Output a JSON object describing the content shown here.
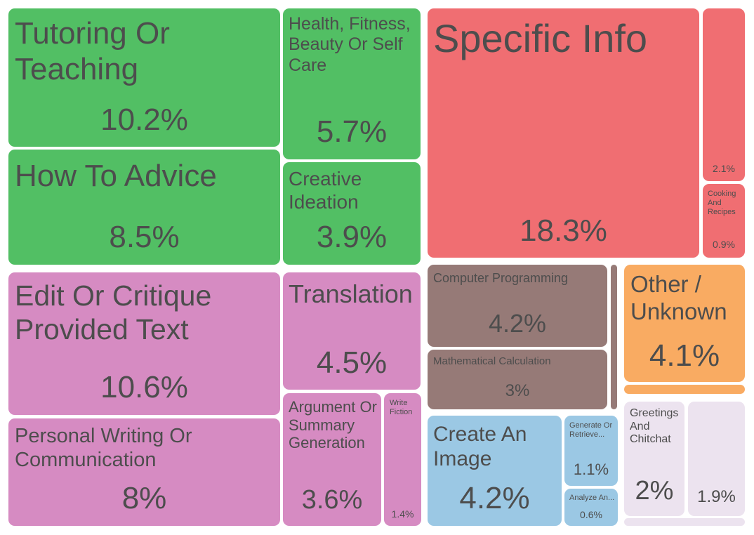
{
  "chart_data": {
    "type": "treemap",
    "title": "",
    "unit": "%",
    "colors": {
      "green": "#52bf64",
      "pink": "#d68bc2",
      "red": "#f06e72",
      "brown": "#967a77",
      "blue": "#9bc8e4",
      "orange": "#f9ab62",
      "lavender": "#ece3ef"
    },
    "items": [
      {
        "label": "Tutoring Or Teaching",
        "value": 10.2,
        "display": "10.2%",
        "color": "green"
      },
      {
        "label": "How To Advice",
        "value": 8.5,
        "display": "8.5%",
        "color": "green"
      },
      {
        "label": "Health, Fitness, Beauty Or Self Care",
        "value": 5.7,
        "display": "5.7%",
        "color": "green"
      },
      {
        "label": "Creative Ideation",
        "value": 3.9,
        "display": "3.9%",
        "color": "green"
      },
      {
        "label": "Edit Or Critique Provided Text",
        "value": 10.6,
        "display": "10.6%",
        "color": "pink"
      },
      {
        "label": "Personal Writing Or Communication",
        "value": 8.0,
        "display": "8%",
        "color": "pink"
      },
      {
        "label": "Translation",
        "value": 4.5,
        "display": "4.5%",
        "color": "pink"
      },
      {
        "label": "Argument Or Summary Generation",
        "value": 3.6,
        "display": "3.6%",
        "color": "pink"
      },
      {
        "label": "Write Fiction",
        "value": 1.4,
        "display": "1.4%",
        "color": "pink"
      },
      {
        "label": "Specific Info",
        "value": 18.3,
        "display": "18.3%",
        "color": "red"
      },
      {
        "label": "",
        "value": 2.1,
        "display": "2.1%",
        "color": "red"
      },
      {
        "label": "Cooking And Recipes",
        "value": 0.9,
        "display": "0.9%",
        "color": "red"
      },
      {
        "label": "Computer Programming",
        "value": 4.2,
        "display": "4.2%",
        "color": "brown"
      },
      {
        "label": "Mathematical Calculation",
        "value": 3.0,
        "display": "3%",
        "color": "brown"
      },
      {
        "label": "",
        "value": null,
        "display": "",
        "color": "brown"
      },
      {
        "label": "Other / Unknown",
        "value": 4.1,
        "display": "4.1%",
        "color": "orange"
      },
      {
        "label": "",
        "value": null,
        "display": "",
        "color": "orange"
      },
      {
        "label": "Create An Image",
        "value": 4.2,
        "display": "4.2%",
        "color": "blue"
      },
      {
        "label": "Generate Or Retrieve...",
        "value": 1.1,
        "display": "1.1%",
        "color": "blue"
      },
      {
        "label": "Analyze An...",
        "value": 0.6,
        "display": "0.6%",
        "color": "blue"
      },
      {
        "label": "Greetings And Chitchat",
        "value": 2.0,
        "display": "2%",
        "color": "lavender"
      },
      {
        "label": "",
        "value": 1.9,
        "display": "1.9%",
        "color": "lavender"
      },
      {
        "label": "",
        "value": null,
        "display": "",
        "color": "lavender"
      }
    ]
  }
}
